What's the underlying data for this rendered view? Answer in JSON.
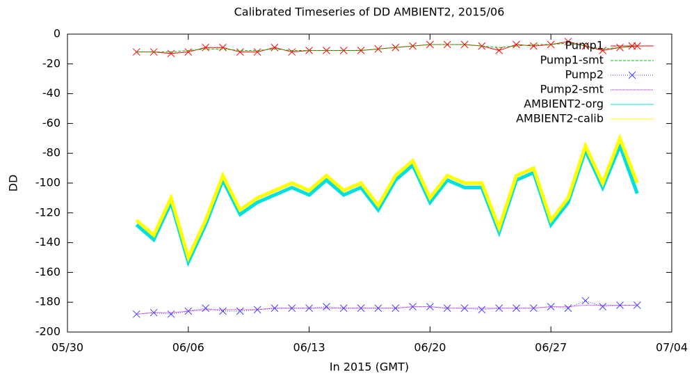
{
  "chart_data": {
    "type": "line",
    "title": "Calibrated Timeseries of DD AMBIENT2, 2015/06",
    "xlabel": "In 2015 (GMT)",
    "ylabel": "DD",
    "x": [
      "2015-06-03",
      "2015-06-04",
      "2015-06-05",
      "2015-06-06",
      "2015-06-07",
      "2015-06-08",
      "2015-06-09",
      "2015-06-10",
      "2015-06-11",
      "2015-06-12",
      "2015-06-13",
      "2015-06-14",
      "2015-06-15",
      "2015-06-16",
      "2015-06-17",
      "2015-06-18",
      "2015-06-19",
      "2015-06-20",
      "2015-06-21",
      "2015-06-22",
      "2015-06-23",
      "2015-06-24",
      "2015-06-25",
      "2015-06-26",
      "2015-06-27",
      "2015-06-28",
      "2015-06-29",
      "2015-06-30",
      "2015-07-01",
      "2015-07-02"
    ],
    "series": [
      {
        "name": "Pump1",
        "color": "#ff0000",
        "marker": "x",
        "dash": "none",
        "values": [
          -12,
          -12,
          -13,
          -12,
          -9,
          -9,
          -12,
          -12,
          -9,
          -12,
          -11,
          -11,
          -11,
          -11,
          -10,
          -9,
          -8,
          -7,
          -7,
          -7,
          -8,
          -11,
          -7,
          -8,
          -7,
          -5,
          -8,
          -11,
          -9,
          -8
        ]
      },
      {
        "name": "Pump1-smt",
        "color": "#00c000",
        "marker": "none",
        "dash": "4,2",
        "values": [
          -12,
          -12,
          -12,
          -11,
          -10,
          -10,
          -11,
          -11,
          -10,
          -11,
          -11,
          -11,
          -11,
          -11,
          -10,
          -9,
          -8,
          -7,
          -7,
          -7,
          -8,
          -9,
          -8,
          -7,
          -7,
          -6,
          -8,
          -10,
          -9,
          -8
        ]
      },
      {
        "name": "Pump2",
        "color": "#4040ff",
        "marker": "x",
        "dash": "1,2",
        "values": [
          -188,
          -187,
          -188,
          -186,
          -184,
          -186,
          -186,
          -185,
          -184,
          -184,
          -184,
          -183,
          -184,
          -184,
          -184,
          -184,
          -183,
          -183,
          -184,
          -184,
          -185,
          -184,
          -184,
          -184,
          -183,
          -184,
          -179,
          -183,
          -182,
          -182
        ]
      },
      {
        "name": "Pump2-smt",
        "color": "#c000ff",
        "marker": "none",
        "dash": "1,1",
        "values": [
          -188,
          -187,
          -187,
          -186,
          -185,
          -185,
          -185,
          -185,
          -184,
          -184,
          -184,
          -184,
          -184,
          -184,
          -184,
          -184,
          -183,
          -183,
          -184,
          -184,
          -184,
          -184,
          -184,
          -184,
          -183,
          -183,
          -182,
          -182,
          -182,
          -182
        ]
      },
      {
        "name": "AMBIENT2-org",
        "color": "#00e0e0",
        "marker": "none",
        "dash": "none",
        "width": 5,
        "values": [
          -128,
          -138,
          -113,
          -153,
          -128,
          -98,
          -121,
          -113,
          -108,
          -103,
          -108,
          -98,
          -108,
          -103,
          -118,
          -98,
          -88,
          -113,
          -98,
          -103,
          -103,
          -133,
          -98,
          -93,
          -128,
          -113,
          -78,
          -103,
          -75,
          -107
        ]
      },
      {
        "name": "AMBIENT2-calib",
        "color": "#ffff00",
        "marker": "none",
        "dash": "none",
        "width": 5,
        "values": [
          -125,
          -135,
          -110,
          -150,
          -125,
          -95,
          -118,
          -110,
          -105,
          -100,
          -105,
          -95,
          -105,
          -100,
          -115,
          -95,
          -85,
          -110,
          -95,
          -100,
          -100,
          -130,
          -95,
          -90,
          -125,
          -110,
          -75,
          -100,
          -70,
          -100
        ]
      }
    ],
    "xlim": [
      "2015-05-30",
      "2015-07-04"
    ],
    "xticks": [
      {
        "value": "2015-05-30",
        "label": "05/30"
      },
      {
        "value": "2015-06-06",
        "label": "06/06"
      },
      {
        "value": "2015-06-13",
        "label": "06/13"
      },
      {
        "value": "2015-06-20",
        "label": "06/20"
      },
      {
        "value": "2015-06-27",
        "label": "06/27"
      },
      {
        "value": "2015-07-04",
        "label": "07/04"
      }
    ],
    "ylim": [
      -200,
      0
    ],
    "yticks": [
      -200,
      -180,
      -160,
      -140,
      -120,
      -100,
      -80,
      -60,
      -40,
      -20,
      0
    ],
    "legend": "top-right",
    "grid": false
  }
}
